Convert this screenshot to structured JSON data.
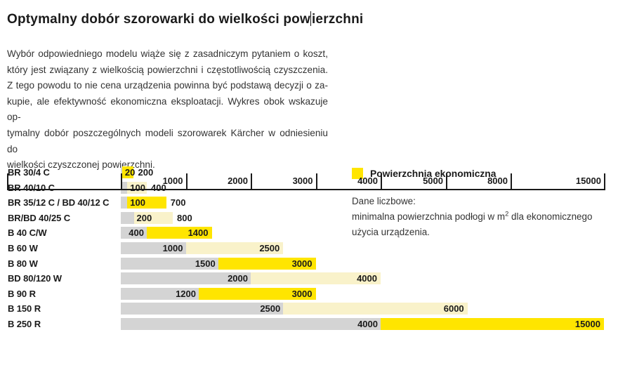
{
  "page": {
    "title_pre": "Optymalny dobór szorowarki do wielkości pow",
    "title_post": "ierzchni",
    "intro_lines": [
      "Wybór odpowiedniego modelu wiąże się z zasadniczym pytaniem o koszt,",
      "który jest związany z wielkością powierzchni i częstotliwością czyszczenia.",
      "Z tego powodu to nie cena urządzenia powinna być podstawą decyzji o za-",
      "kupie, ale efektywność ekonomiczna eksploatacji. Wykres obok wskazuje op-",
      "tymalny dobór poszczególnych modeli szorowarek Kärcher w odniesieniu do",
      "wielkości czyszczonej powierzchni."
    ]
  },
  "legend": {
    "label": "Powierzchnia ekonomiczna",
    "note_title": "Dane liczbowe:",
    "note_line1_pre": "minimalna powierzchnia podłogi w m",
    "note_sup": "2",
    "note_line1_post": " dla ekonomicznego",
    "note_line2": "użycia urządzenia."
  },
  "chart_data": {
    "type": "bar",
    "orientation": "horizontal",
    "value_unit": "m2",
    "legend": "Powierzchnia ekonomiczna",
    "axis_ticks": [
      1000,
      2000,
      3000,
      4000,
      5000,
      8000,
      15000
    ],
    "axis_scale_note": "non-linear: equal spacing per tick interval 0-5000 linear, then 8000, 15000",
    "colors": {
      "economic_bright": "#FFE500",
      "economic_pale": "#F9F2CA",
      "base_gray": "#D4D4D4",
      "axis_line": "#1a1a1a"
    },
    "rows": [
      {
        "model": "BR 30/4 C",
        "min": 20,
        "max": 200,
        "tone": "bright"
      },
      {
        "model": "BR 40/10 C",
        "min": 100,
        "max": 400,
        "tone": "pale"
      },
      {
        "model": "BR 35/12 C / BD 40/12 C",
        "min": 100,
        "max": 700,
        "tone": "bright"
      },
      {
        "model": "BR/BD 40/25 C",
        "min": 200,
        "max": 800,
        "tone": "pale"
      },
      {
        "model": "B 40 C/W",
        "min": 400,
        "max": 1400,
        "tone": "bright"
      },
      {
        "model": "B 60 W",
        "min": 1000,
        "max": 2500,
        "tone": "pale"
      },
      {
        "model": "B 80 W",
        "min": 1500,
        "max": 3000,
        "tone": "bright"
      },
      {
        "model": "BD 80/120 W",
        "min": 2000,
        "max": 4000,
        "tone": "pale"
      },
      {
        "model": "B 90 R",
        "min": 1200,
        "max": 3000,
        "tone": "bright"
      },
      {
        "model": "B 150 R",
        "min": 2500,
        "max": 6000,
        "tone": "pale"
      },
      {
        "model": "B 250 R",
        "min": 4000,
        "max": 15000,
        "tone": "bright"
      }
    ]
  }
}
